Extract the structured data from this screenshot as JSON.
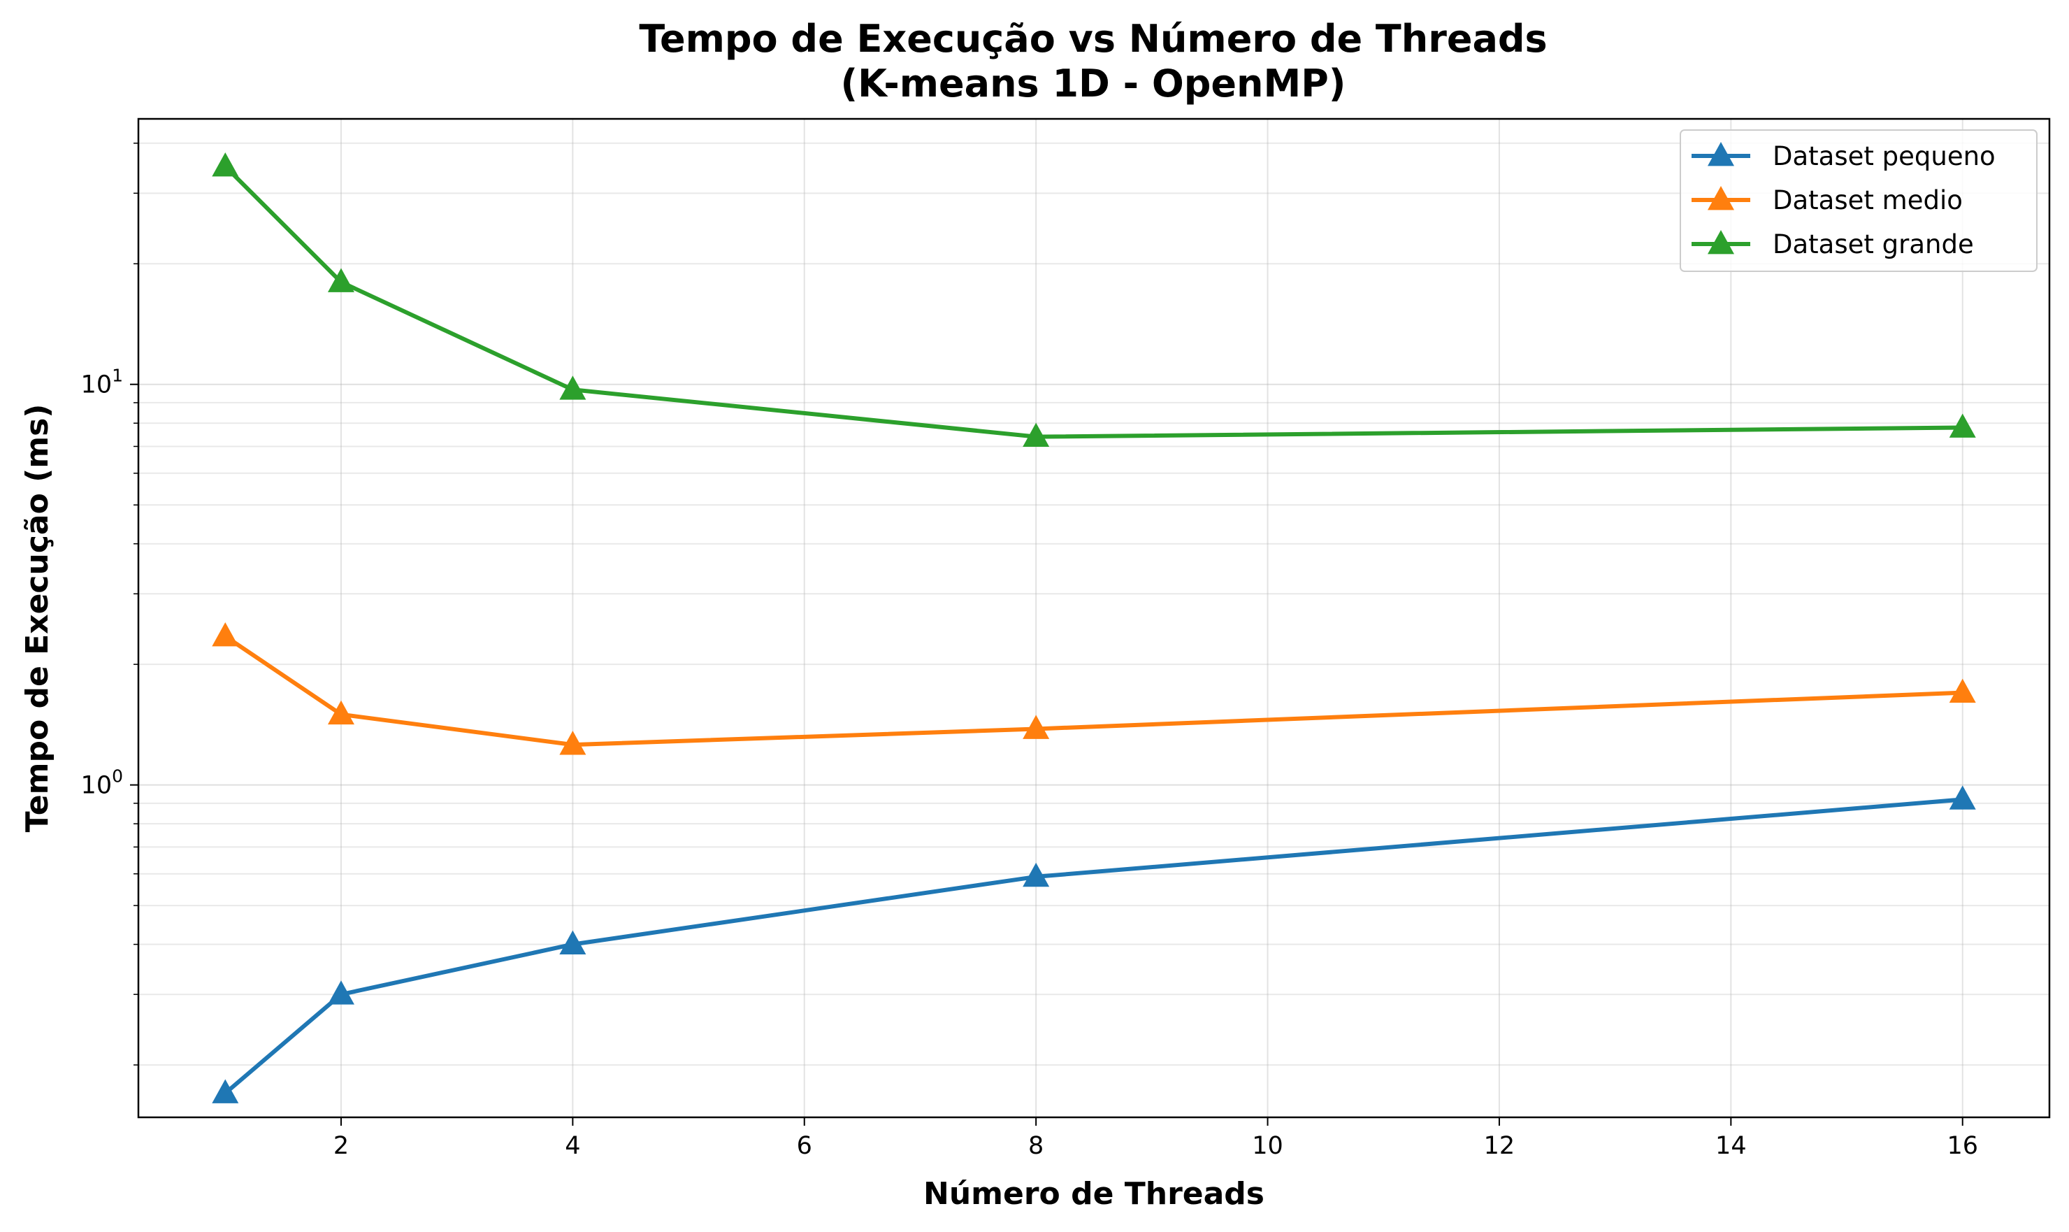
{
  "chart_data": {
    "type": "line",
    "title": "Tempo de Execução vs Número de Threads",
    "subtitle": "(K-means 1D - OpenMP)",
    "xlabel": "Número de Threads",
    "ylabel": "Tempo de Execução (ms)",
    "x": [
      1,
      2,
      4,
      8,
      16
    ],
    "xlim": [
      0.25,
      16.75
    ],
    "xticks": [
      2,
      4,
      6,
      8,
      10,
      12,
      14,
      16
    ],
    "yscale": "log",
    "ylim": [
      0.148,
      46
    ],
    "yticks": [
      {
        "value": 1,
        "base": "10",
        "exp": "0"
      },
      {
        "value": 10,
        "base": "10",
        "exp": "1"
      }
    ],
    "grid": true,
    "legend_position": "top-right",
    "marker": "triangle",
    "series": [
      {
        "name": "Dataset pequeno",
        "color": "#1f77b4",
        "values": [
          0.17,
          0.3,
          0.4,
          0.59,
          0.92
        ]
      },
      {
        "name": "Dataset medio",
        "color": "#ff7f0e",
        "values": [
          2.35,
          1.5,
          1.26,
          1.38,
          1.7
        ]
      },
      {
        "name": "Dataset grande",
        "color": "#2ca02c",
        "values": [
          35.0,
          18.0,
          9.7,
          7.4,
          7.8
        ]
      }
    ]
  }
}
